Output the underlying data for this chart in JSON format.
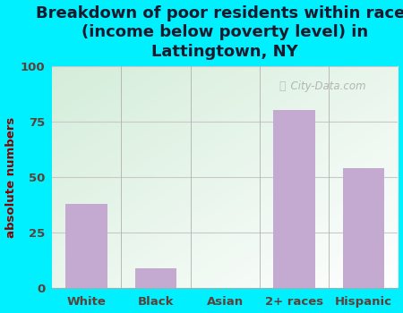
{
  "title": "Breakdown of poor residents within races\n(income below poverty level) in\nLattingtown, NY",
  "categories": [
    "White",
    "Black",
    "Asian",
    "2+ races",
    "Hispanic"
  ],
  "values": [
    38,
    9,
    0,
    80,
    54
  ],
  "bar_color": "#c4aad0",
  "ylabel": "absolute numbers",
  "ylim": [
    0,
    100
  ],
  "yticks": [
    0,
    25,
    50,
    75,
    100
  ],
  "bg_outer": "#00f0ff",
  "bg_plot_topleft": "#d8eedc",
  "bg_plot_bottomright": "#f8f8f0",
  "title_fontsize": 13,
  "title_color": "#1a1a2e",
  "ylabel_color": "#8b0000",
  "tick_color": "#5d4037",
  "grid_color": "#c8c8c8",
  "watermark": "City-Data.com"
}
